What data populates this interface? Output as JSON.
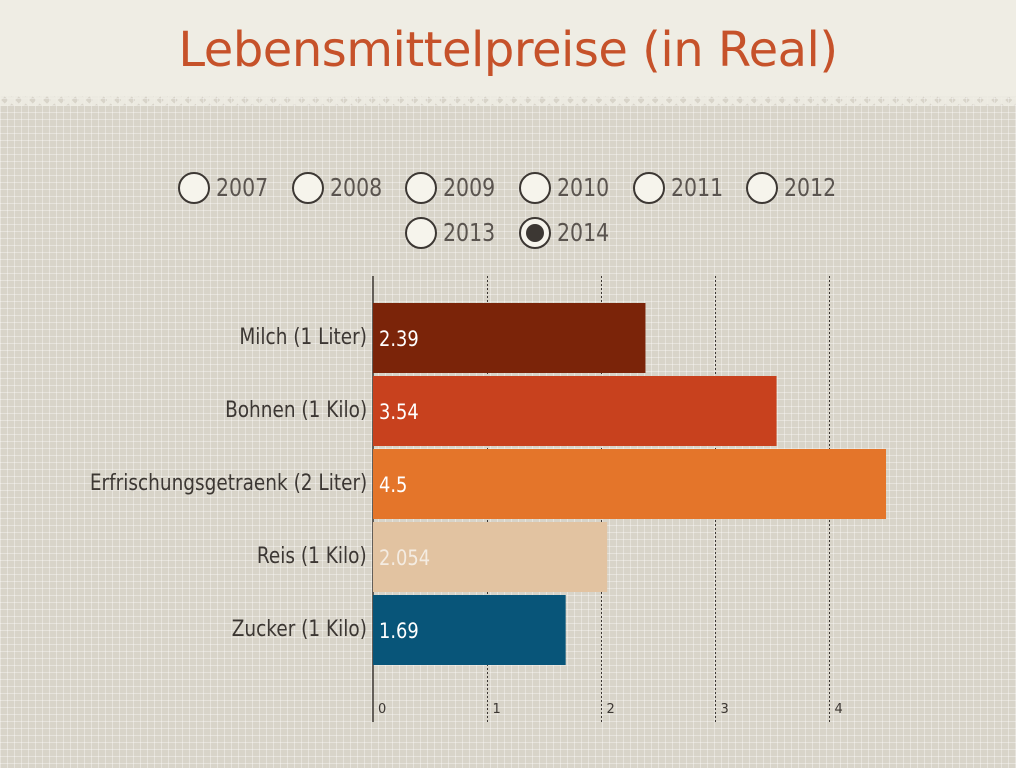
{
  "title": "Lebensmittelpreise (in Real)",
  "years": [
    "2007",
    "2008",
    "2009",
    "2010",
    "2011",
    "2012",
    "2013",
    "2014"
  ],
  "selected_year": "2014",
  "chart_data": {
    "type": "bar",
    "orientation": "horizontal",
    "title": "Lebensmittelpreise (in Real)",
    "categories": [
      "Milch (1 Liter)",
      "Bohnen (1 Kilo)",
      "Erfrischungsgetraenk (2 Liter)",
      "Reis (1 Kilo)",
      "Zucker (1 Kilo)"
    ],
    "values": [
      2.39,
      3.54,
      4.5,
      2.054,
      1.69
    ],
    "value_labels": [
      "2.39",
      "3.54",
      "4.5",
      "2.054",
      "1.69"
    ],
    "colors": [
      "#7b2409",
      "#c8411e",
      "#e4752a",
      "#e2c3a1",
      "#085579"
    ],
    "label_colors": [
      "#ffffff",
      "#ffffff",
      "#ffffff",
      "#f4ece2",
      "#ffffff"
    ],
    "xlim": [
      0,
      4.5
    ],
    "xticks": [
      0,
      1,
      2,
      3,
      4
    ],
    "xtick_labels": [
      "0",
      "1",
      "2",
      "3",
      "4"
    ],
    "grid": "vertical dotted"
  }
}
